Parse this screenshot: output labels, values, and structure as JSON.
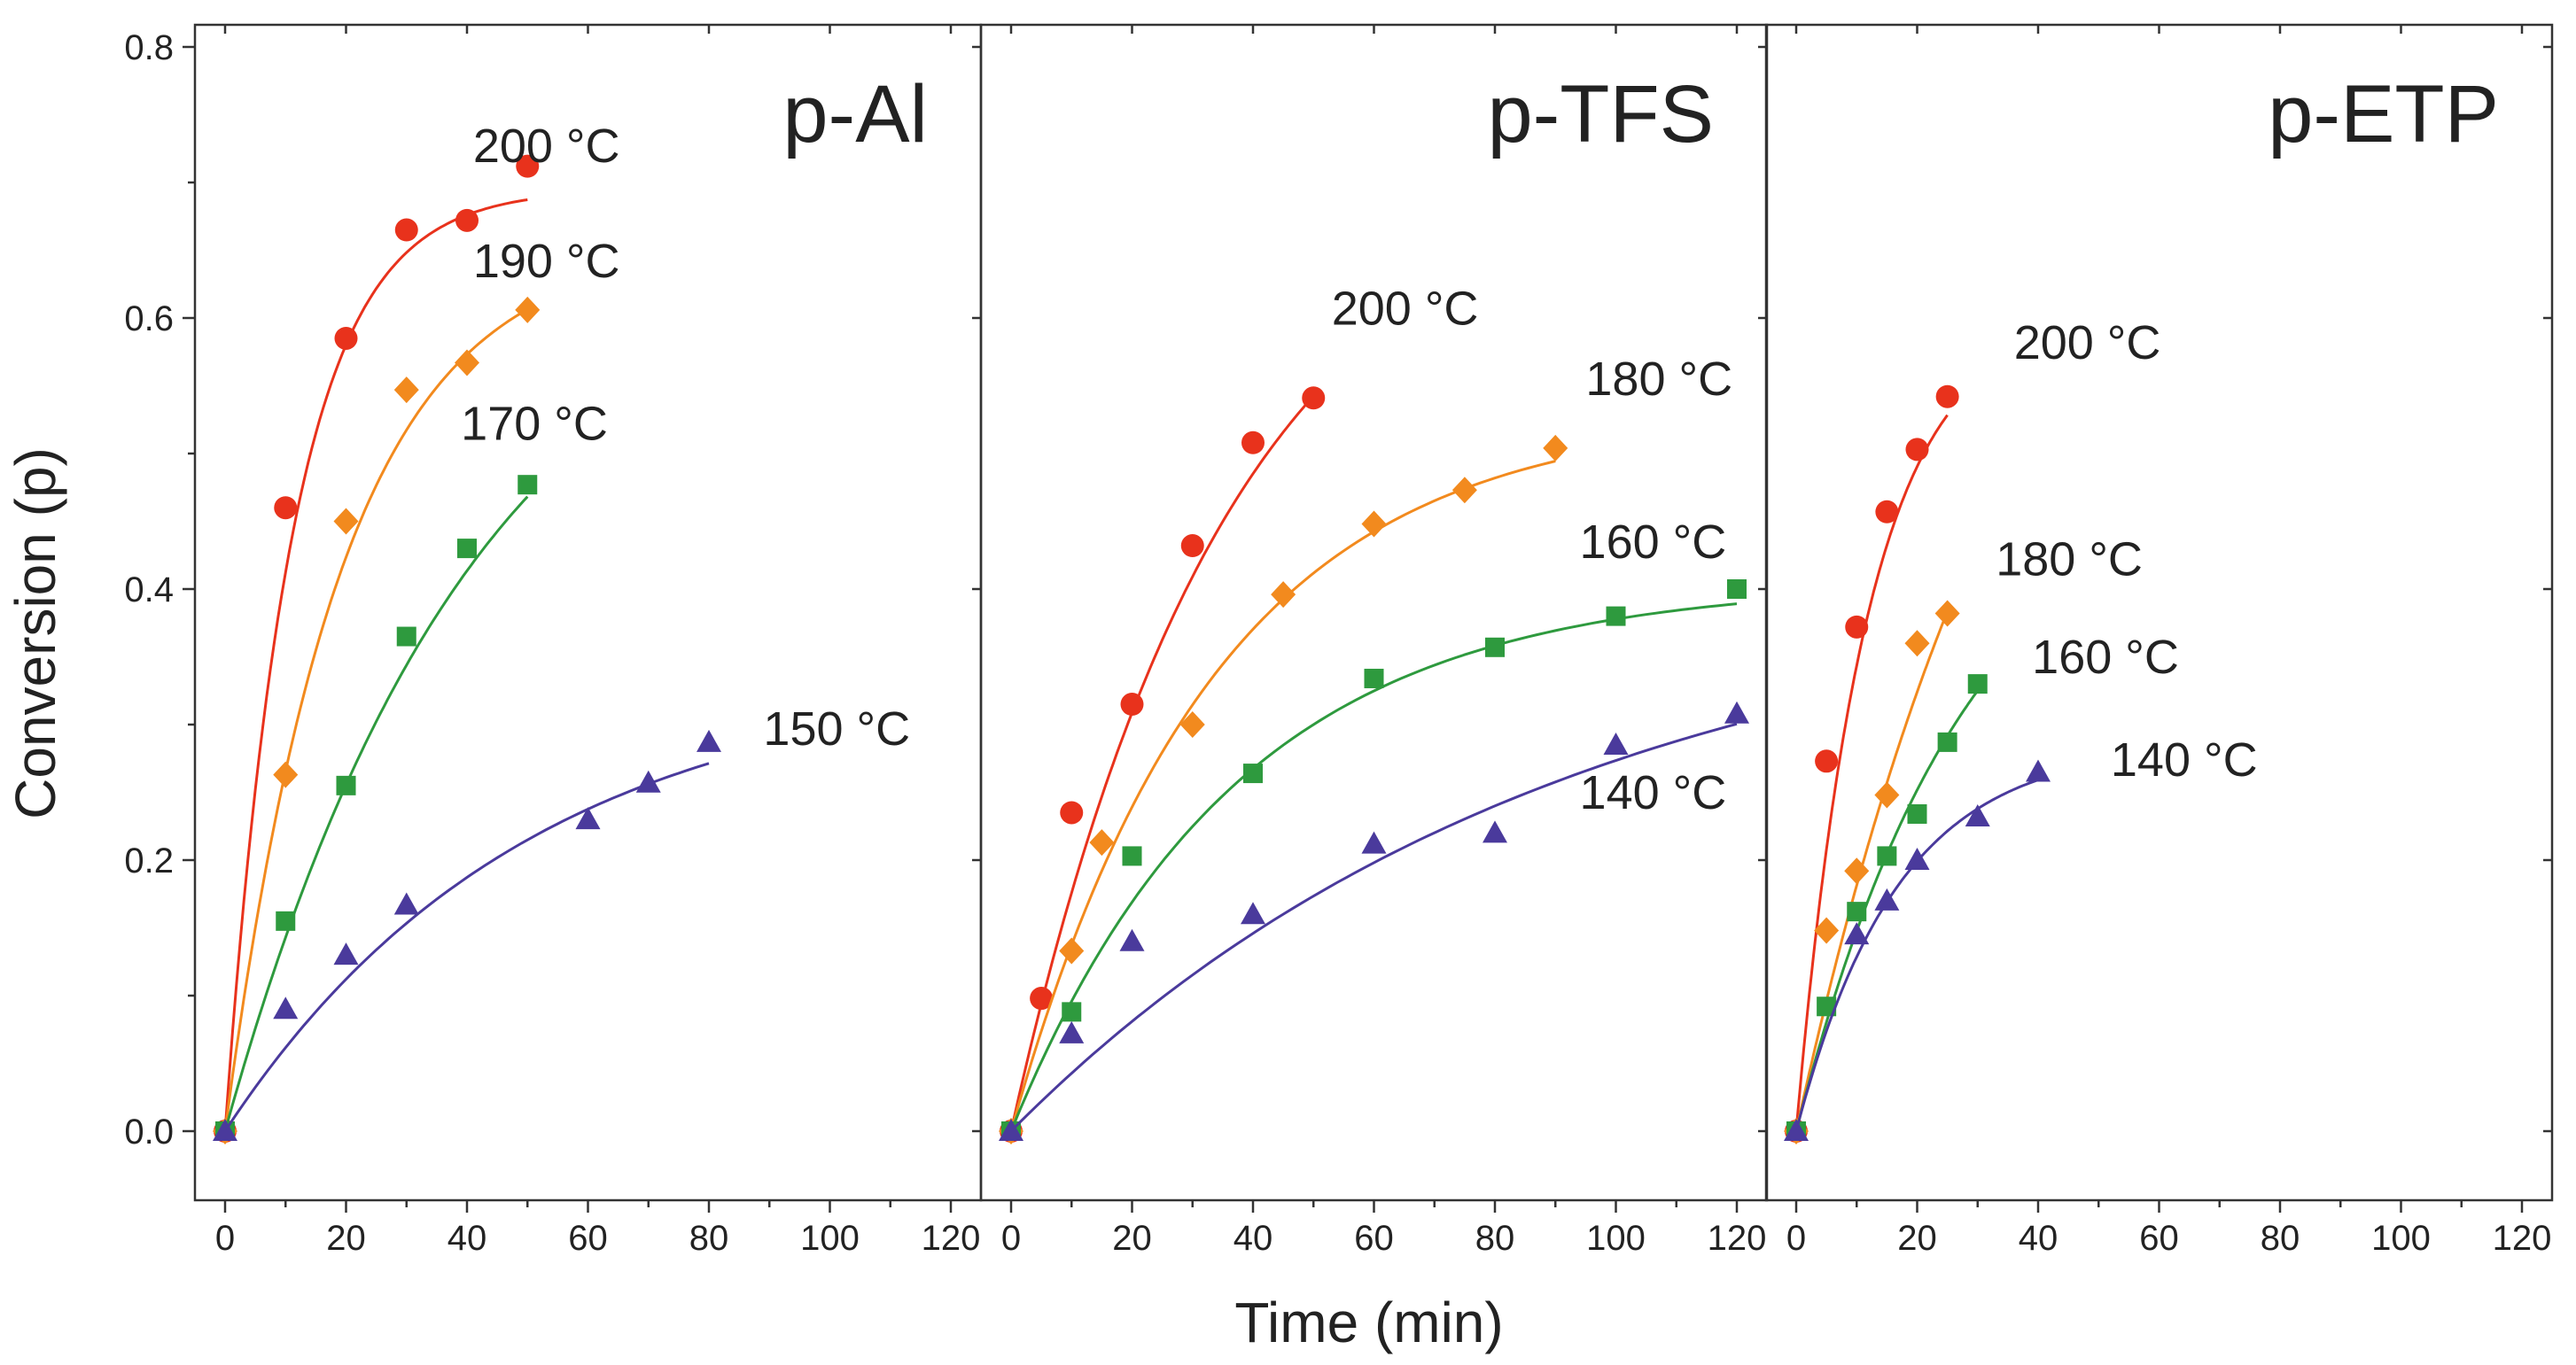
{
  "chart_data": {
    "type": "scatter",
    "figure": {
      "xlabel": "Time (min)",
      "ylabel": "Conversion (p)",
      "xlim": [
        -5,
        125
      ],
      "ylim": [
        -0.05,
        0.82
      ],
      "xticks": [
        0,
        20,
        40,
        60,
        80,
        100,
        120
      ],
      "yticks": [
        0.0,
        0.2,
        0.4,
        0.6,
        0.8
      ],
      "ytick_labels": [
        "0.0",
        "0.2",
        "0.4",
        "0.6",
        "0.8"
      ],
      "grid": false,
      "colors": {
        "200": "#e8321c",
        "high2": "#f28a1e",
        "mid": "#2e9a3e",
        "low": "#4a3a9c"
      }
    },
    "panels": [
      {
        "title": "p-Al",
        "series": [
          {
            "name": "200 °C",
            "color": "#e8321c",
            "marker": "circle",
            "label_pos": [
              41,
              0.715
            ],
            "x": [
              0,
              10,
              20,
              30,
              40,
              50
            ],
            "y": [
              0.0,
              0.46,
              0.585,
              0.665,
              0.672,
              0.712
            ],
            "fit": {
              "pmax": 0.695,
              "k": 0.09,
              "xmax": 50
            }
          },
          {
            "name": "190 °C",
            "color": "#f28a1e",
            "marker": "diamond",
            "label_pos": [
              41,
              0.63
            ],
            "x": [
              0,
              10,
              20,
              30,
              40,
              50
            ],
            "y": [
              0.0,
              0.263,
              0.45,
              0.547,
              0.567,
              0.606
            ],
            "fit": {
              "pmax": 0.655,
              "k": 0.052,
              "xmax": 50
            }
          },
          {
            "name": "170 °C",
            "color": "#2e9a3e",
            "marker": "square",
            "label_pos": [
              39,
              0.51
            ],
            "x": [
              0,
              10,
              20,
              30,
              40,
              50
            ],
            "y": [
              0.0,
              0.155,
              0.255,
              0.365,
              0.43,
              0.477
            ],
            "fit": {
              "pmax": 0.67,
              "k": 0.024,
              "xmax": 50
            }
          },
          {
            "name": "150 °C",
            "color": "#4a3a9c",
            "marker": "triangle",
            "label_pos": [
              89,
              0.285
            ],
            "x": [
              0,
              10,
              20,
              30,
              60,
              70,
              80
            ],
            "y": [
              0.0,
              0.09,
              0.13,
              0.167,
              0.23,
              0.257,
              0.287
            ],
            "fit": {
              "pmax": 0.34,
              "k": 0.02,
              "xmax": 80
            }
          }
        ]
      },
      {
        "title": "p-TFS",
        "series": [
          {
            "name": "200 °C",
            "color": "#e8321c",
            "marker": "circle",
            "label_pos": [
              53,
              0.595
            ],
            "x": [
              0,
              5,
              10,
              20,
              30,
              40,
              50
            ],
            "y": [
              0.0,
              0.098,
              0.235,
              0.315,
              0.432,
              0.508,
              0.541
            ],
            "fit": {
              "pmax": 0.72,
              "k": 0.028,
              "xmax": 50
            }
          },
          {
            "name": "180 °C",
            "color": "#f28a1e",
            "marker": "diamond",
            "label_pos": [
              95,
              0.543
            ],
            "x": [
              0,
              10,
              15,
              30,
              45,
              60,
              75,
              90
            ],
            "y": [
              0.0,
              0.133,
              0.213,
              0.3,
              0.396,
              0.448,
              0.473,
              0.504
            ],
            "fit": {
              "pmax": 0.53,
              "k": 0.03,
              "xmax": 90
            }
          },
          {
            "name": "160 °C",
            "color": "#2e9a3e",
            "marker": "square",
            "label_pos": [
              94,
              0.423
            ],
            "x": [
              0,
              10,
              20,
              40,
              60,
              80,
              100,
              120
            ],
            "y": [
              0.0,
              0.088,
              0.203,
              0.264,
              0.334,
              0.357,
              0.38,
              0.4
            ],
            "fit": {
              "pmax": 0.405,
              "k": 0.027,
              "xmax": 120
            }
          },
          {
            "name": "140 °C",
            "color": "#4a3a9c",
            "marker": "triangle",
            "label_pos": [
              94,
              0.238
            ],
            "x": [
              0,
              10,
              20,
              40,
              60,
              80,
              100,
              120
            ],
            "y": [
              0.0,
              0.072,
              0.14,
              0.16,
              0.212,
              0.22,
              0.285,
              0.308
            ],
            "fit": {
              "pmax": 0.41,
              "k": 0.011,
              "xmax": 120
            }
          }
        ]
      },
      {
        "title": "p-ETP",
        "series": [
          {
            "name": "200 °C",
            "color": "#e8321c",
            "marker": "circle",
            "label_pos": [
              36,
              0.57
            ],
            "x": [
              0,
              5,
              10,
              15,
              20,
              25
            ],
            "y": [
              0.0,
              0.273,
              0.372,
              0.457,
              0.503,
              0.542
            ],
            "fit": {
              "pmax": 0.6,
              "k": 0.085,
              "xmax": 25
            }
          },
          {
            "name": "180 °C",
            "color": "#f28a1e",
            "marker": "diamond",
            "label_pos": [
              33,
              0.41
            ],
            "x": [
              0,
              5,
              10,
              15,
              20,
              25
            ],
            "y": [
              0.0,
              0.148,
              0.192,
              0.248,
              0.36,
              0.382
            ],
            "fit": {
              "pmax": 0.85,
              "k": 0.024,
              "xmax": 25
            }
          },
          {
            "name": "160 °C",
            "color": "#2e9a3e",
            "marker": "square",
            "label_pos": [
              39,
              0.338
            ],
            "x": [
              0,
              5,
              10,
              15,
              20,
              25,
              30
            ],
            "y": [
              0.0,
              0.092,
              0.162,
              0.203,
              0.234,
              0.287,
              0.33
            ],
            "fit": {
              "pmax": 0.5,
              "k": 0.035,
              "xmax": 30
            }
          },
          {
            "name": "140 °C",
            "color": "#4a3a9c",
            "marker": "triangle",
            "label_pos": [
              52,
              0.262
            ],
            "x": [
              0,
              10,
              15,
              20,
              30,
              40
            ],
            "y": [
              0.0,
              0.145,
              0.17,
              0.2,
              0.232,
              0.265
            ],
            "fit": {
              "pmax": 0.285,
              "k": 0.06,
              "xmax": 40
            }
          }
        ]
      }
    ]
  }
}
